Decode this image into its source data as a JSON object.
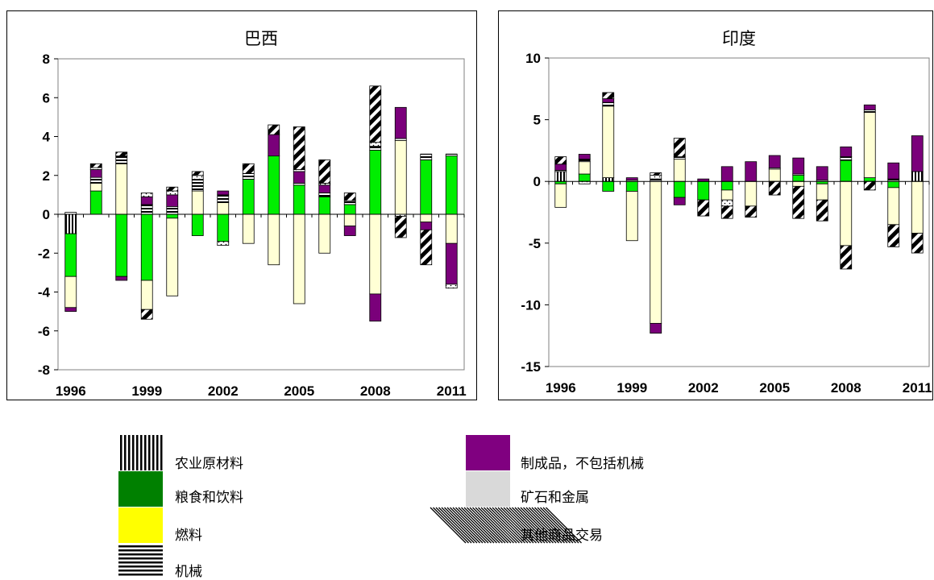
{
  "legend": {
    "agri": "农业原材料",
    "food": "粮食和饮料",
    "fuel": "燃料",
    "mach": "机械",
    "manuf": "制成品，不包括机械",
    "ores": "矿石和金属",
    "other": "其他商品交易"
  },
  "colors": {
    "food_in_charts": "#00ee00",
    "fuel_in_charts": "#ffffd5",
    "manuf": "#7a007a",
    "food_legend": "#008000",
    "fuel_legend": "#ffff00",
    "ores_legend": "#d9d9d9"
  },
  "chart_data": [
    {
      "type": "bar",
      "stacked": true,
      "title": "巴西",
      "ylim": [
        -8,
        8
      ],
      "yticks": [
        -8,
        -6,
        -4,
        -2,
        0,
        2,
        4,
        6,
        8
      ],
      "categories": [
        "1996",
        "1997",
        "1998",
        "1999",
        "2000",
        "2001",
        "2002",
        "2003",
        "2004",
        "2005",
        "2006",
        "2007",
        "2008",
        "2009",
        "2010",
        "2011"
      ],
      "xtick_labels": [
        "1996",
        "1999",
        "2002",
        "2005",
        "2008",
        "2011"
      ],
      "series": [
        {
          "key": "agri",
          "values": [
            -1.0,
            0,
            0,
            0,
            0,
            0,
            0,
            0,
            0,
            0,
            0,
            0,
            0,
            0,
            0,
            0
          ]
        },
        {
          "key": "food",
          "values": [
            -2.2,
            1.2,
            -3.2,
            -3.4,
            -0.2,
            -1.1,
            -1.4,
            1.8,
            3.0,
            1.5,
            0.9,
            0.5,
            3.3,
            0,
            2.8,
            3.0
          ]
        },
        {
          "key": "fuel",
          "values": [
            -1.6,
            0.4,
            2.6,
            -1.5,
            -4.0,
            1.2,
            0.6,
            -1.5,
            -2.6,
            -4.6,
            -2.0,
            -0.6,
            -4.1,
            3.8,
            -0.4,
            -1.5
          ]
        },
        {
          "key": "mach",
          "values": [
            0.1,
            0.3,
            0.4,
            0.5,
            0.4,
            0.6,
            0.4,
            0.3,
            0,
            0.1,
            0.2,
            0.2,
            0.2,
            0.1,
            0.3,
            0.1
          ]
        },
        {
          "key": "manuf",
          "values": [
            -0.2,
            0.4,
            -0.2,
            0.4,
            0.6,
            0,
            0.2,
            0,
            1.1,
            0.6,
            0.4,
            -0.5,
            -1.4,
            1.6,
            -0.4,
            -2.1
          ]
        },
        {
          "key": "ores",
          "values": [
            0,
            0.1,
            0,
            0.2,
            0.2,
            0.2,
            -0.2,
            0,
            0,
            0.1,
            0.1,
            0,
            0.2,
            -0.1,
            0,
            -0.2
          ]
        },
        {
          "key": "other",
          "values": [
            0,
            0.2,
            0.2,
            -0.5,
            0.2,
            0.2,
            0,
            0.5,
            0.5,
            2.2,
            1.2,
            0.4,
            2.9,
            -1.1,
            -1.8,
            0
          ]
        }
      ]
    },
    {
      "type": "bar",
      "stacked": true,
      "title": "印度",
      "ylim": [
        -15,
        10
      ],
      "yticks": [
        -15,
        -10,
        -5,
        0,
        5,
        10
      ],
      "categories": [
        "1996",
        "1997",
        "1998",
        "1999",
        "2000",
        "2001",
        "2002",
        "2003",
        "2004",
        "2005",
        "2006",
        "2007",
        "2008",
        "2009",
        "2010",
        "2011"
      ],
      "xtick_labels": [
        "1996",
        "1999",
        "2002",
        "2005",
        "2008",
        "2011"
      ],
      "series": [
        {
          "key": "agri",
          "values": [
            0.8,
            0,
            0.3,
            0,
            0,
            0,
            0,
            0,
            0,
            0,
            0,
            0,
            0,
            0,
            0,
            0.8
          ]
        },
        {
          "key": "food",
          "values": [
            -0.2,
            0.6,
            -0.8,
            -0.8,
            0,
            -1.3,
            -1.5,
            -0.7,
            0,
            0,
            0.5,
            -0.2,
            1.7,
            0.3,
            -0.5,
            0
          ]
        },
        {
          "key": "fuel",
          "values": [
            -1.9,
            1.0,
            5.8,
            -4.0,
            -11.5,
            1.8,
            0,
            -0.8,
            -2.0,
            1.0,
            -0.4,
            -1.3,
            -5.2,
            5.3,
            -3.0,
            -4.2
          ]
        },
        {
          "key": "mach",
          "values": [
            0.1,
            0.2,
            0.3,
            0.1,
            0.2,
            0.2,
            0,
            0,
            0,
            0.1,
            0.1,
            0.1,
            0.3,
            0.2,
            0.2,
            0
          ]
        },
        {
          "key": "manuf",
          "values": [
            0.5,
            0.4,
            0.3,
            0.2,
            -0.8,
            -0.6,
            0.2,
            1.2,
            1.6,
            1.0,
            1.3,
            1.1,
            0.8,
            0.4,
            1.3,
            2.9
          ]
        },
        {
          "key": "ores",
          "values": [
            0,
            -0.2,
            0,
            0,
            0.3,
            0,
            0,
            -0.5,
            0,
            0,
            0,
            0,
            0,
            0,
            0,
            0
          ]
        },
        {
          "key": "other",
          "values": [
            0.6,
            0,
            0.5,
            0,
            0.2,
            1.5,
            -1.3,
            -1.0,
            -0.9,
            -1.1,
            -2.6,
            -1.7,
            -1.9,
            -0.7,
            -1.8,
            -1.6
          ]
        }
      ]
    }
  ]
}
